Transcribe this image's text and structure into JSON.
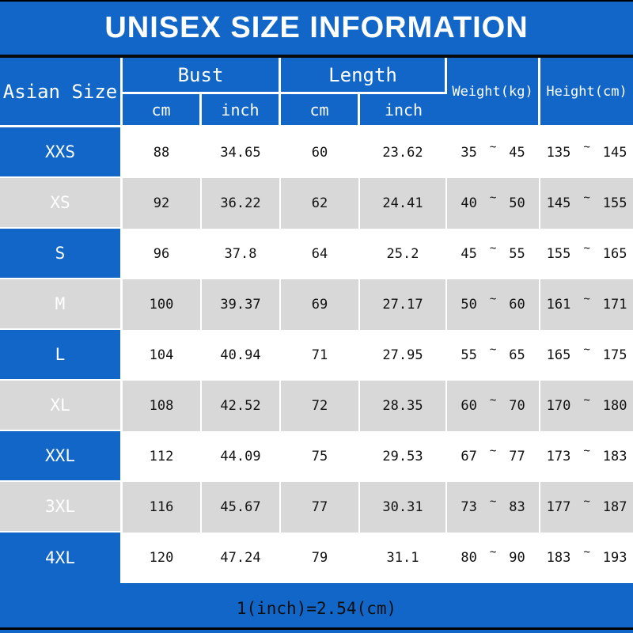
{
  "title": "UNISEX SIZE INFORMATION",
  "footer_note": "1(inch)=2.54(cm)",
  "tilde": "~",
  "colors": {
    "header_blue": "#1166c7",
    "row_gray": "#d8d8d8",
    "row_white": "#ffffff",
    "header_text": "#ffffff",
    "body_text": "#111111",
    "divider_black": "#000000"
  },
  "header": {
    "size_column": "Asian Size",
    "groups": [
      {
        "label": "Bust",
        "sub": [
          "cm",
          "inch"
        ]
      },
      {
        "label": "Length",
        "sub": [
          "cm",
          "inch"
        ]
      }
    ],
    "weight": "Weight(kg)",
    "height": "Height(cm)"
  },
  "chart_data": {
    "type": "table",
    "title": "UNISEX SIZE INFORMATION",
    "columns": [
      "Asian Size",
      "Bust cm",
      "Bust inch",
      "Length cm",
      "Length inch",
      "Weight(kg)",
      "Height(cm)"
    ],
    "rows": [
      [
        "XXS",
        "88",
        "34.65",
        "60",
        "23.62",
        "35 ~ 45",
        "135 ~ 145"
      ],
      [
        "XS",
        "92",
        "36.22",
        "62",
        "24.41",
        "40 ~ 50",
        "145 ~ 155"
      ],
      [
        "S",
        "96",
        "37.8",
        "64",
        "25.2",
        "45 ~ 55",
        "155 ~ 165"
      ],
      [
        "M",
        "100",
        "39.37",
        "69",
        "27.17",
        "50 ~ 60",
        "161 ~ 171"
      ],
      [
        "L",
        "104",
        "40.94",
        "71",
        "27.95",
        "55 ~ 65",
        "165 ~ 175"
      ],
      [
        "XL",
        "108",
        "42.52",
        "72",
        "28.35",
        "60 ~ 70",
        "170 ~ 180"
      ],
      [
        "XXL",
        "112",
        "44.09",
        "75",
        "29.53",
        "67 ~ 77",
        "173 ~ 183"
      ],
      [
        "3XL",
        "116",
        "45.67",
        "77",
        "30.31",
        "73 ~ 83",
        "177 ~ 187"
      ],
      [
        "4XL",
        "120",
        "47.24",
        "79",
        "31.1",
        "80 ~ 90",
        "183 ~ 193"
      ]
    ],
    "note": "1(inch)=2.54(cm)"
  }
}
